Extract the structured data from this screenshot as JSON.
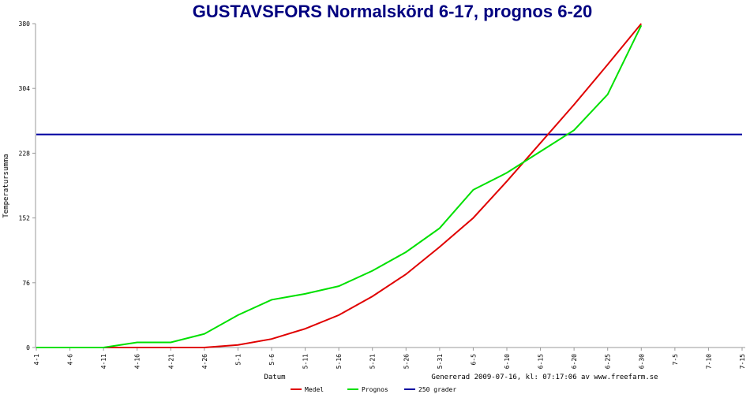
{
  "chart_data": {
    "type": "line",
    "title": "GUSTAVSFORS Normalskörd 6-17, prognos 6-20",
    "x_label": "Datum",
    "y_label": "Temperatursumma",
    "footer": "Genererad 2009-07-16, kl: 07:17:06 av www.freefarm.se",
    "categories": [
      "4-1",
      "4-6",
      "4-11",
      "4-16",
      "4-21",
      "4-26",
      "5-1",
      "5-6",
      "5-11",
      "5-16",
      "5-21",
      "5-26",
      "5-31",
      "6-5",
      "6-10",
      "6-15",
      "6-20",
      "6-25",
      "6-30",
      "7-5",
      "7-10",
      "7-15"
    ],
    "series": [
      {
        "name": "Medel",
        "color": "#e00000",
        "values": [
          0,
          0,
          0,
          0,
          0,
          0,
          3,
          10,
          22,
          38,
          60,
          86,
          118,
          152,
          195,
          240,
          285,
          332,
          380,
          null,
          null,
          null
        ]
      },
      {
        "name": "Prognos",
        "color": "#00e000",
        "values": [
          0,
          0,
          0,
          6,
          6,
          16,
          38,
          56,
          63,
          72,
          90,
          112,
          140,
          185,
          205,
          230,
          255,
          297,
          378,
          null,
          null,
          null
        ]
      }
    ],
    "reference_line": {
      "name": "250 grader",
      "value": 250,
      "color": "#0000a0"
    },
    "ylim": [
      0,
      380
    ],
    "yticks": [
      0,
      76,
      152,
      228,
      304,
      380
    ]
  }
}
